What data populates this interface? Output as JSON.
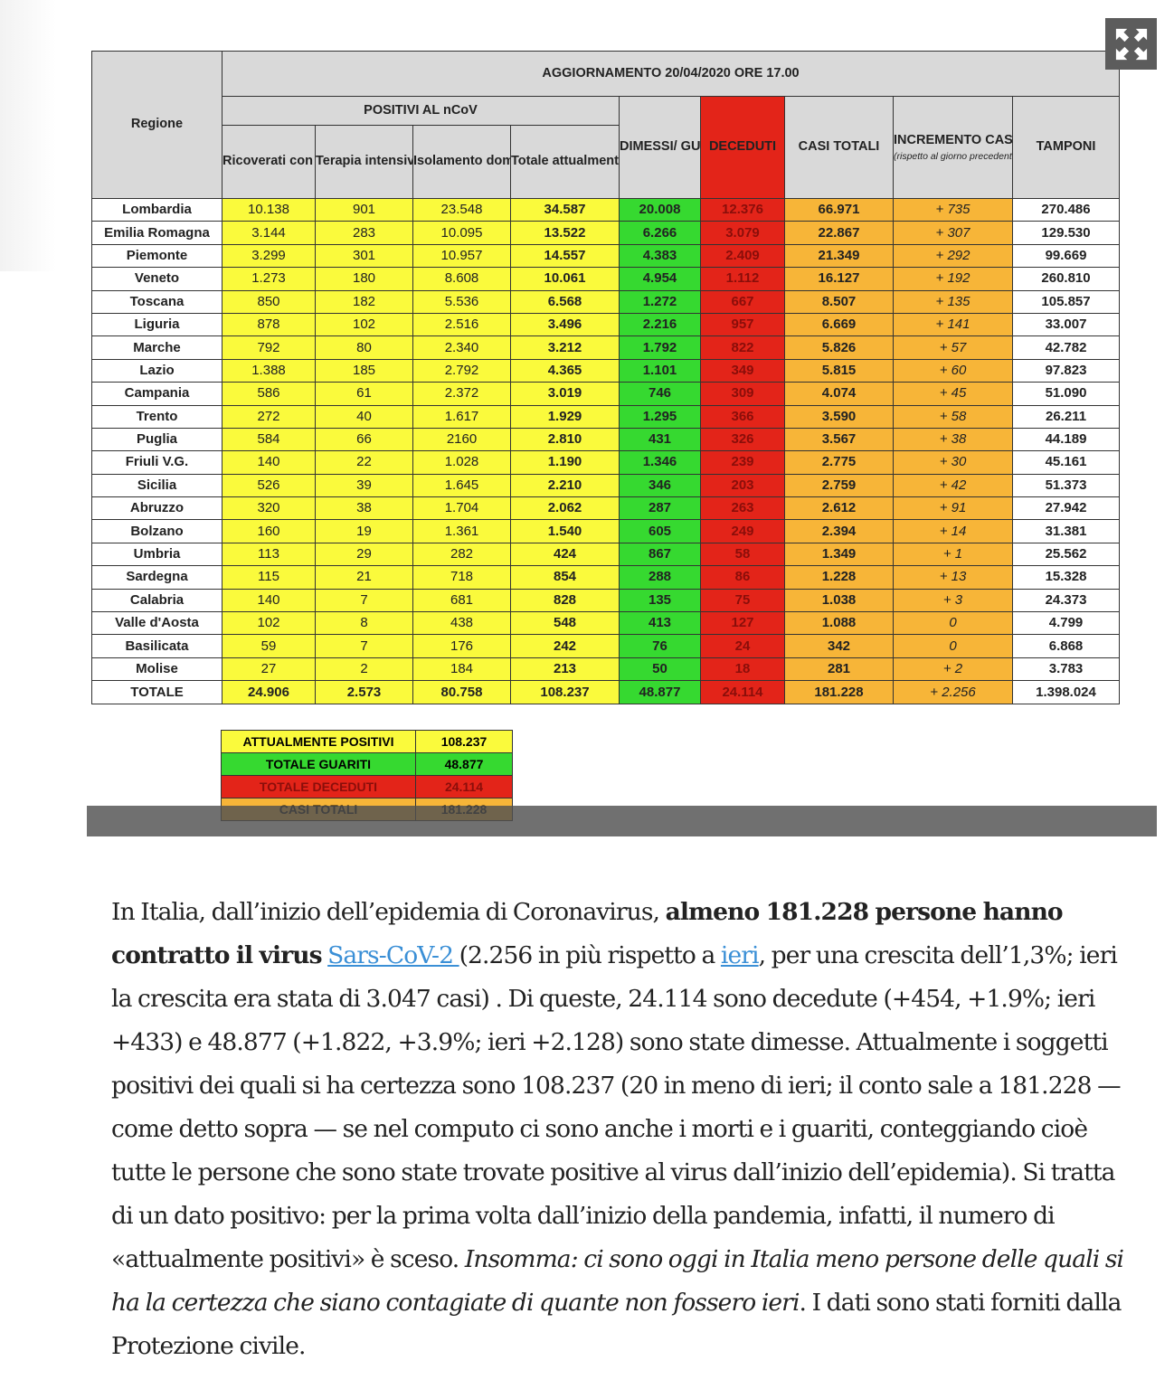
{
  "figure": {
    "update_header": "AGGIORNAMENTO 20/04/2020 ORE 17.00",
    "region_header": "Regione",
    "positivi_header": "POSITIVI AL nCoV",
    "columns": {
      "ricoverati": "Ricoverati con sintomi",
      "terapia": "Terapia intensiva",
      "isolamento": "Isolamento domiciliare",
      "totale_pos": "Totale attualmente positivi",
      "dimessi": "DIMESSI/ GUARITI",
      "deceduti": "DECEDUTI",
      "casi": "CASI TOTALI",
      "incremento": "INCREMENTO CASI TOTALI",
      "incremento_note": "(rispetto al giorno precedente)",
      "tamponi": "TAMPONI"
    },
    "rows": [
      [
        "Lombardia",
        "10.138",
        "901",
        "23.548",
        "34.587",
        "20.008",
        "12.376",
        "66.971",
        "+ 735",
        "270.486"
      ],
      [
        "Emilia Romagna",
        "3.144",
        "283",
        "10.095",
        "13.522",
        "6.266",
        "3.079",
        "22.867",
        "+ 307",
        "129.530"
      ],
      [
        "Piemonte",
        "3.299",
        "301",
        "10.957",
        "14.557",
        "4.383",
        "2.409",
        "21.349",
        "+ 292",
        "99.669"
      ],
      [
        "Veneto",
        "1.273",
        "180",
        "8.608",
        "10.061",
        "4.954",
        "1.112",
        "16.127",
        "+ 192",
        "260.810"
      ],
      [
        "Toscana",
        "850",
        "182",
        "5.536",
        "6.568",
        "1.272",
        "667",
        "8.507",
        "+ 135",
        "105.857"
      ],
      [
        "Liguria",
        "878",
        "102",
        "2.516",
        "3.496",
        "2.216",
        "957",
        "6.669",
        "+ 141",
        "33.007"
      ],
      [
        "Marche",
        "792",
        "80",
        "2.340",
        "3.212",
        "1.792",
        "822",
        "5.826",
        "+ 57",
        "42.782"
      ],
      [
        "Lazio",
        "1.388",
        "185",
        "2.792",
        "4.365",
        "1.101",
        "349",
        "5.815",
        "+ 60",
        "97.823"
      ],
      [
        "Campania",
        "586",
        "61",
        "2.372",
        "3.019",
        "746",
        "309",
        "4.074",
        "+ 45",
        "51.090"
      ],
      [
        "Trento",
        "272",
        "40",
        "1.617",
        "1.929",
        "1.295",
        "366",
        "3.590",
        "+ 58",
        "26.211"
      ],
      [
        "Puglia",
        "584",
        "66",
        "2160",
        "2.810",
        "431",
        "326",
        "3.567",
        "+ 38",
        "44.189"
      ],
      [
        "Friuli V.G.",
        "140",
        "22",
        "1.028",
        "1.190",
        "1.346",
        "239",
        "2.775",
        "+ 30",
        "45.161"
      ],
      [
        "Sicilia",
        "526",
        "39",
        "1.645",
        "2.210",
        "346",
        "203",
        "2.759",
        "+ 42",
        "51.373"
      ],
      [
        "Abruzzo",
        "320",
        "38",
        "1.704",
        "2.062",
        "287",
        "263",
        "2.612",
        "+ 91",
        "27.942"
      ],
      [
        "Bolzano",
        "160",
        "19",
        "1.361",
        "1.540",
        "605",
        "249",
        "2.394",
        "+ 14",
        "31.381"
      ],
      [
        "Umbria",
        "113",
        "29",
        "282",
        "424",
        "867",
        "58",
        "1.349",
        "+ 1",
        "25.562"
      ],
      [
        "Sardegna",
        "115",
        "21",
        "718",
        "854",
        "288",
        "86",
        "1.228",
        "+ 13",
        "15.328"
      ],
      [
        "Calabria",
        "140",
        "7",
        "681",
        "828",
        "135",
        "75",
        "1.038",
        "+ 3",
        "24.373"
      ],
      [
        "Valle d'Aosta",
        "102",
        "8",
        "438",
        "548",
        "413",
        "127",
        "1.088",
        "0",
        "4.799"
      ],
      [
        "Basilicata",
        "59",
        "7",
        "176",
        "242",
        "76",
        "24",
        "342",
        "0",
        "6.868"
      ],
      [
        "Molise",
        "27",
        "2",
        "184",
        "213",
        "50",
        "18",
        "281",
        "+ 2",
        "3.783"
      ]
    ],
    "total_row": [
      "TOTALE",
      "24.906",
      "2.573",
      "80.758",
      "108.237",
      "48.877",
      "24.114",
      "181.228",
      "+ 2.256",
      "1.398.024"
    ],
    "summary": [
      {
        "label": "ATTUALMENTE POSITIVI",
        "value": "108.237",
        "color": "#fafa3c"
      },
      {
        "label": "TOTALE GUARITI",
        "value": "48.877",
        "color": "#36d930"
      },
      {
        "label": "TOTALE DECEDUTI",
        "value": "24.114",
        "color": "#e32419"
      },
      {
        "label": "CASI TOTALI",
        "value": "181.228",
        "color": "#f7b538"
      }
    ],
    "colors": {
      "yellow": "#fafa3c",
      "green": "#36d930",
      "red": "#e32419",
      "orange": "#f7b538",
      "header_grey": "#d9d9d9"
    },
    "expand_icon": "expand-arrows-icon"
  },
  "article": {
    "p1_a": "In Italia, dall’inizio dell’epidemia di Coronavirus, ",
    "p1_bold": "almeno 181.228 persone hanno contratto il virus",
    "p1_space": " ",
    "p1_link1": "Sars-CoV-2 ",
    "p1_b": "(2.256 in più rispetto a ",
    "p1_link2": "ieri",
    "p1_c": ", per una crescita dell’1,3%; ieri la crescita era stata di 3.047 casi) . Di queste, 24.114 sono decedute (+454, +1.9%; ieri +433) e 48.877 (+1.822, +3.9%; ieri +2.128) sono state dimesse. Attualmente i soggetti positivi dei quali si ha certezza sono 108.237 (20 in meno di ieri; il conto sale a 181.228 — come detto sopra — se nel computo ci sono anche i morti e i guariti, conteggiando cioè tutte le persone che sono state trovate positive al virus dall’inizio dell’epidemia). Si tratta di un dato positivo: per la prima volta dall’inizio della pandemia, infatti, il numero di «attualmente positivi» è sceso. ",
    "p1_italic": "Insomma: ci sono oggi in Italia meno persone delle quali si ha la certezza che siano contagiate di quante non fossero ieri",
    "p1_d": ". I dati sono stati forniti dalla Protezione civile."
  }
}
